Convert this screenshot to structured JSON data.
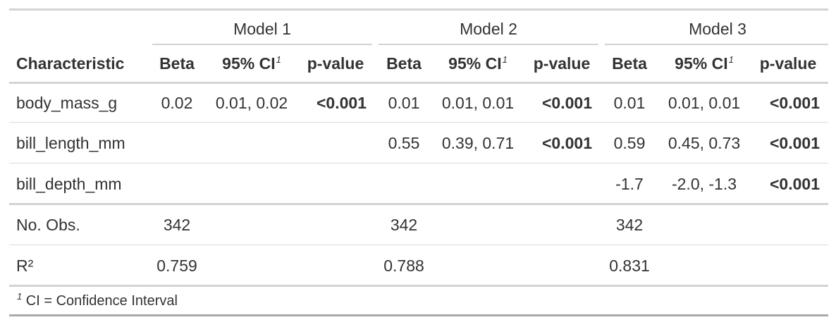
{
  "spanners": [
    "Model 1",
    "Model 2",
    "Model 3"
  ],
  "header": {
    "characteristic": "Characteristic",
    "beta": "Beta",
    "ci": "95% CI",
    "pvalue": "p-value",
    "fn_mark": "1"
  },
  "rows": [
    {
      "label": "body_mass_g",
      "m1": {
        "beta": "0.02",
        "ci": "0.01, 0.02",
        "p": "<0.001"
      },
      "m2": {
        "beta": "0.01",
        "ci": "0.01, 0.01",
        "p": "<0.001"
      },
      "m3": {
        "beta": "0.01",
        "ci": "0.01, 0.01",
        "p": "<0.001"
      }
    },
    {
      "label": "bill_length_mm",
      "m2": {
        "beta": "0.55",
        "ci": "0.39, 0.71",
        "p": "<0.001"
      },
      "m3": {
        "beta": "0.59",
        "ci": "0.45, 0.73",
        "p": "<0.001"
      }
    },
    {
      "label": "bill_depth_mm",
      "m3": {
        "beta": "-1.7",
        "ci": "-2.0, -1.3",
        "p": "<0.001"
      }
    }
  ],
  "stats": [
    {
      "label": "No. Obs.",
      "m1": "342",
      "m2": "342",
      "m3": "342"
    },
    {
      "label": "R²",
      "m1": "0.759",
      "m2": "0.788",
      "m3": "0.831"
    }
  ],
  "footnote": {
    "mark": "1",
    "text": "CI = Confidence Interval"
  }
}
